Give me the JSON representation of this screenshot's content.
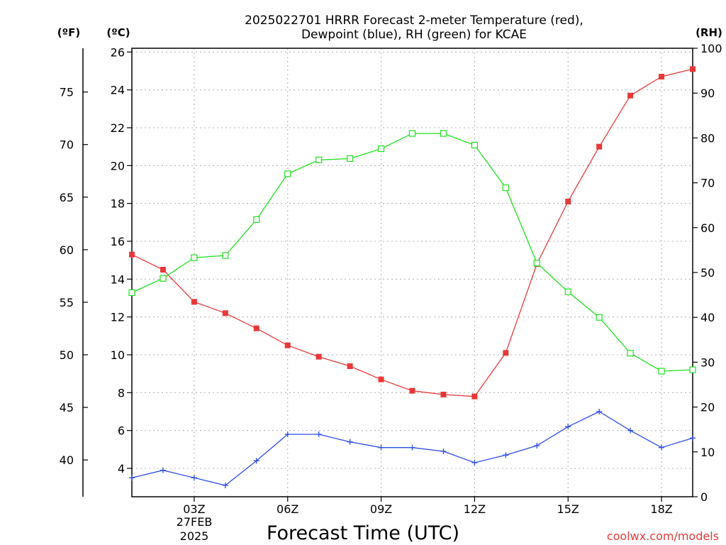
{
  "chart_data": {
    "type": "line",
    "title_line1": "2025022701 HRRR Forecast 2-meter Temperature (red),",
    "title_line2": "Dewpoint (blue), RH (green) for KCAE",
    "xlabel": "Forecast Time (UTC)",
    "date_line1": "27FEB",
    "date_line2": "2025",
    "credit": "coolwx.com/models",
    "units": {
      "fahrenheit": "(ºF)",
      "celsius": "(ºC)",
      "rh": "(RH)"
    },
    "x_hours": [
      1,
      2,
      3,
      4,
      5,
      6,
      7,
      8,
      9,
      10,
      11,
      12,
      13,
      14,
      15,
      16,
      17,
      18,
      19
    ],
    "x_tick_hours": [
      3,
      6,
      9,
      12,
      15,
      18
    ],
    "x_tick_labels": [
      "03Z",
      "06Z",
      "09Z",
      "12Z",
      "15Z",
      "18Z"
    ],
    "xlim": [
      1,
      19
    ],
    "ylim_celsius": [
      2.5,
      26.2
    ],
    "ylim_rh": [
      0,
      100
    ],
    "celsius_ticks": [
      "4",
      "6",
      "8",
      "10",
      "12",
      "14",
      "16",
      "18",
      "20",
      "22",
      "24",
      "26"
    ],
    "fahrenheit_ticks": [
      "40",
      "45",
      "50",
      "55",
      "60",
      "65",
      "70",
      "75"
    ],
    "rh_ticks": [
      "0",
      "10",
      "20",
      "30",
      "40",
      "50",
      "60",
      "70",
      "80",
      "90",
      "100"
    ],
    "colors": {
      "temperature": "#e83838",
      "dewpoint": "#2c4ee8",
      "rh": "#1ee01e"
    },
    "series": [
      {
        "values": [
          15.3,
          14.5,
          12.8,
          12.2,
          11.4,
          10.5,
          9.9,
          9.4,
          8.7,
          8.1,
          7.9,
          7.8,
          10.1,
          14.8,
          18.1,
          21.0,
          23.7,
          24.7,
          25.1
        ]
      },
      {
        "values": [
          3.5,
          3.9,
          3.5,
          3.1,
          4.4,
          5.8,
          5.8,
          5.4,
          5.1,
          5.1,
          4.9,
          4.3,
          4.7,
          5.2,
          6.2,
          7.0,
          6.0,
          5.1,
          5.6
        ]
      },
      {
        "values": [
          45.5,
          48.7,
          53.3,
          53.8,
          61.8,
          72.0,
          75.1,
          75.4,
          77.6,
          81.0,
          81.0,
          78.4,
          68.9,
          52.1,
          45.7,
          40.0,
          32.0,
          28.0,
          28.3
        ]
      }
    ]
  }
}
